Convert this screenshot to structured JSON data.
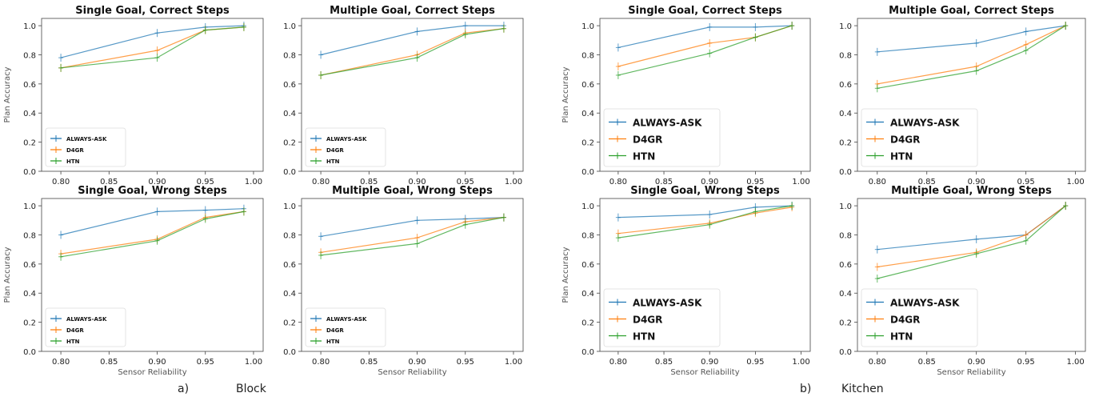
{
  "captions": {
    "a_letter": "a)",
    "a_label": "Block",
    "b_letter": "b)",
    "b_label": "Kitchen"
  },
  "colors": {
    "ALWAYS-ASK": "#1f77b4",
    "D4GR": "#ff7f0e",
    "HTN": "#2ca02c"
  },
  "chart_data": [
    {
      "type": "line",
      "title": "Single Goal, Correct Steps",
      "xlabel": "",
      "ylabel": "Plan Accuracy",
      "x": [
        0.8,
        0.9,
        0.95,
        0.99
      ],
      "xticks": [
        "0.80",
        "0.85",
        "0.90",
        "0.95",
        "1.00"
      ],
      "yticks": [
        "0.0",
        "0.2",
        "0.4",
        "0.6",
        "0.8",
        "1.0"
      ],
      "xlim": [
        0.78,
        1.01
      ],
      "ylim": [
        0,
        1.05
      ],
      "legend": "lower-left",
      "legend_size": "small",
      "series": [
        {
          "name": "ALWAYS-ASK",
          "values": [
            0.78,
            0.95,
            0.99,
            1.0
          ]
        },
        {
          "name": "D4GR",
          "values": [
            0.71,
            0.83,
            0.97,
            0.99
          ]
        },
        {
          "name": "HTN",
          "values": [
            0.71,
            0.78,
            0.97,
            0.99
          ]
        }
      ]
    },
    {
      "type": "line",
      "title": "Multiple Goal, Correct Steps",
      "xlabel": "",
      "ylabel": "",
      "x": [
        0.8,
        0.9,
        0.95,
        0.99
      ],
      "xticks": [
        "0.80",
        "0.85",
        "0.90",
        "0.95",
        "1.00"
      ],
      "yticks": [
        "0.0",
        "0.2",
        "0.4",
        "0.6",
        "0.8",
        "1.0"
      ],
      "xlim": [
        0.78,
        1.01
      ],
      "ylim": [
        0,
        1.05
      ],
      "legend": "lower-left",
      "legend_size": "small",
      "series": [
        {
          "name": "ALWAYS-ASK",
          "values": [
            0.8,
            0.96,
            1.0,
            1.0
          ]
        },
        {
          "name": "D4GR",
          "values": [
            0.66,
            0.8,
            0.95,
            0.98
          ]
        },
        {
          "name": "HTN",
          "values": [
            0.66,
            0.78,
            0.94,
            0.98
          ]
        }
      ]
    },
    {
      "type": "line",
      "title": "Single Goal, Correct Steps",
      "xlabel": "",
      "ylabel": "Plan Accuracy",
      "x": [
        0.8,
        0.9,
        0.95,
        0.99
      ],
      "xticks": [
        "0.80",
        "0.85",
        "0.90",
        "0.95",
        "1.00"
      ],
      "yticks": [
        "0.0",
        "0.2",
        "0.4",
        "0.6",
        "0.8",
        "1.0"
      ],
      "xlim": [
        0.78,
        1.01
      ],
      "ylim": [
        0,
        1.05
      ],
      "legend": "lower-left",
      "legend_size": "large",
      "series": [
        {
          "name": "ALWAYS-ASK",
          "values": [
            0.85,
            0.99,
            0.99,
            1.0
          ]
        },
        {
          "name": "D4GR",
          "values": [
            0.72,
            0.88,
            0.92,
            1.0
          ]
        },
        {
          "name": "HTN",
          "values": [
            0.66,
            0.81,
            0.92,
            1.0
          ]
        }
      ]
    },
    {
      "type": "line",
      "title": "Multiple Goal, Correct Steps",
      "xlabel": "",
      "ylabel": "",
      "x": [
        0.8,
        0.9,
        0.95,
        0.99
      ],
      "xticks": [
        "0.80",
        "0.85",
        "0.90",
        "0.95",
        "1.00"
      ],
      "yticks": [
        "0.0",
        "0.2",
        "0.4",
        "0.6",
        "0.8",
        "1.0"
      ],
      "xlim": [
        0.78,
        1.01
      ],
      "ylim": [
        0,
        1.05
      ],
      "legend": "lower-left",
      "legend_size": "large",
      "series": [
        {
          "name": "ALWAYS-ASK",
          "values": [
            0.82,
            0.88,
            0.96,
            1.0
          ]
        },
        {
          "name": "D4GR",
          "values": [
            0.6,
            0.72,
            0.87,
            1.0
          ]
        },
        {
          "name": "HTN",
          "values": [
            0.57,
            0.69,
            0.83,
            1.0
          ]
        }
      ]
    },
    {
      "type": "line",
      "title": "Single Goal, Wrong Steps",
      "xlabel": "Sensor Reliability",
      "ylabel": "Plan Accuracy",
      "x": [
        0.8,
        0.9,
        0.95,
        0.99
      ],
      "xticks": [
        "0.80",
        "0.85",
        "0.90",
        "0.95",
        "1.00"
      ],
      "yticks": [
        "0.0",
        "0.2",
        "0.4",
        "0.6",
        "0.8",
        "1.0"
      ],
      "xlim": [
        0.78,
        1.01
      ],
      "ylim": [
        0,
        1.05
      ],
      "legend": "lower-left",
      "legend_size": "small",
      "series": [
        {
          "name": "ALWAYS-ASK",
          "values": [
            0.8,
            0.96,
            0.97,
            0.98
          ]
        },
        {
          "name": "D4GR",
          "values": [
            0.67,
            0.77,
            0.92,
            0.96
          ]
        },
        {
          "name": "HTN",
          "values": [
            0.65,
            0.76,
            0.91,
            0.96
          ]
        }
      ]
    },
    {
      "type": "line",
      "title": "Multiple Goal, Wrong Steps",
      "xlabel": "Sensor Reliability",
      "ylabel": "",
      "x": [
        0.8,
        0.9,
        0.95,
        0.99
      ],
      "xticks": [
        "0.80",
        "0.85",
        "0.90",
        "0.95",
        "1.00"
      ],
      "yticks": [
        "0.0",
        "0.2",
        "0.4",
        "0.6",
        "0.8",
        "1.0"
      ],
      "xlim": [
        0.78,
        1.01
      ],
      "ylim": [
        0,
        1.05
      ],
      "legend": "lower-left",
      "legend_size": "small",
      "series": [
        {
          "name": "ALWAYS-ASK",
          "values": [
            0.79,
            0.9,
            0.91,
            0.92
          ]
        },
        {
          "name": "D4GR",
          "values": [
            0.68,
            0.78,
            0.89,
            0.92
          ]
        },
        {
          "name": "HTN",
          "values": [
            0.66,
            0.74,
            0.87,
            0.92
          ]
        }
      ]
    },
    {
      "type": "line",
      "title": "Single Goal, Wrong Steps",
      "xlabel": "Sensor Reliability",
      "ylabel": "Plan Accuracy",
      "x": [
        0.8,
        0.9,
        0.95,
        0.99
      ],
      "xticks": [
        "0.80",
        "0.85",
        "0.90",
        "0.95",
        "1.00"
      ],
      "yticks": [
        "0.0",
        "0.2",
        "0.4",
        "0.6",
        "0.8",
        "1.0"
      ],
      "xlim": [
        0.78,
        1.01
      ],
      "ylim": [
        0,
        1.05
      ],
      "legend": "lower-left",
      "legend_size": "large",
      "series": [
        {
          "name": "ALWAYS-ASK",
          "values": [
            0.92,
            0.94,
            0.99,
            1.0
          ]
        },
        {
          "name": "D4GR",
          "values": [
            0.81,
            0.88,
            0.95,
            0.99
          ]
        },
        {
          "name": "HTN",
          "values": [
            0.78,
            0.87,
            0.96,
            1.0
          ]
        }
      ]
    },
    {
      "type": "line",
      "title": "Multiple Goal, Wrong Steps",
      "xlabel": "Sensor Reliability",
      "ylabel": "",
      "x": [
        0.8,
        0.9,
        0.95,
        0.99
      ],
      "xticks": [
        "0.80",
        "0.85",
        "0.90",
        "0.95",
        "1.00"
      ],
      "yticks": [
        "0.0",
        "0.2",
        "0.4",
        "0.6",
        "0.8",
        "1.0"
      ],
      "xlim": [
        0.78,
        1.01
      ],
      "ylim": [
        0,
        1.05
      ],
      "legend": "lower-left",
      "legend_size": "large",
      "series": [
        {
          "name": "ALWAYS-ASK",
          "values": [
            0.7,
            0.77,
            0.8,
            1.0
          ]
        },
        {
          "name": "D4GR",
          "values": [
            0.58,
            0.68,
            0.8,
            1.0
          ]
        },
        {
          "name": "HTN",
          "values": [
            0.5,
            0.67,
            0.76,
            1.0
          ]
        }
      ]
    }
  ]
}
